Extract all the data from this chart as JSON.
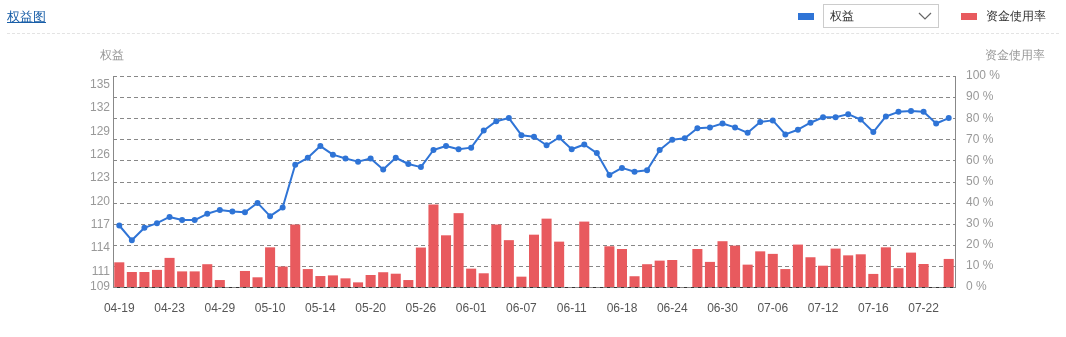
{
  "chart_data": {
    "type": "line",
    "title": "权益图",
    "ylabel": "权益",
    "y2label": "资金使用率",
    "categories": [
      "04-19",
      null,
      null,
      null,
      "04-23",
      null,
      null,
      null,
      "04-29",
      null,
      null,
      null,
      "05-10",
      null,
      null,
      null,
      "05-14",
      null,
      null,
      null,
      "05-20",
      null,
      null,
      null,
      "05-26",
      null,
      null,
      null,
      "06-01",
      null,
      null,
      null,
      "06-07",
      null,
      null,
      null,
      "06-11",
      null,
      null,
      null,
      "06-18",
      null,
      null,
      null,
      "06-24",
      null,
      null,
      null,
      "06-30",
      null,
      null,
      null,
      "07-06",
      null,
      null,
      null,
      "07-12",
      null,
      null,
      null,
      "07-16",
      null,
      null,
      null,
      "07-22",
      null,
      null
    ],
    "series": [
      {
        "name": "权益",
        "color": "#2f74d6",
        "values": [
          116.9,
          115.0,
          116.6,
          117.2,
          118.0,
          117.6,
          117.6,
          118.4,
          118.9,
          118.7,
          118.6,
          119.8,
          118.1,
          119.2,
          124.7,
          125.6,
          127.1,
          126.0,
          125.5,
          125.1,
          125.5,
          124.1,
          125.6,
          124.8,
          124.4,
          126.6,
          127.1,
          126.7,
          126.9,
          129.1,
          130.3,
          130.7,
          128.5,
          128.3,
          127.2,
          128.2,
          126.7,
          127.3,
          126.2,
          123.4,
          124.3,
          123.8,
          124.0,
          126.6,
          127.9,
          128.1,
          129.4,
          129.5,
          130.0,
          129.5,
          128.8,
          130.2,
          130.4,
          128.6,
          129.2,
          130.1,
          130.8,
          130.8,
          131.2,
          130.5,
          128.9,
          130.9,
          131.5,
          131.6,
          131.5,
          130.0,
          130.7
        ]
      },
      {
        "name": "资金使用率",
        "type": "bar",
        "axis": "y2",
        "color": "#e85a5e",
        "values": [
          11.7,
          7.1,
          7.1,
          8.1,
          13.8,
          7.4,
          7.4,
          10.8,
          3.3,
          null,
          7.6,
          4.6,
          18.8,
          9.7,
          29.6,
          8.5,
          5.2,
          5.5,
          4.1,
          2.2,
          5.7,
          7.0,
          6.3,
          3.3,
          18.7,
          39.1,
          24.5,
          35.0,
          8.7,
          6.5,
          29.6,
          22.2,
          4.9,
          24.8,
          32.4,
          21.5,
          null,
          31.0,
          null,
          19.3,
          18.0,
          5.1,
          10.8,
          12.5,
          12.8,
          null,
          18.0,
          11.9,
          21.7,
          19.6,
          10.6,
          16.9,
          15.7,
          8.5,
          20.1,
          14.1,
          10.1,
          18.2,
          15.0,
          15.5,
          6.2,
          18.8,
          8.9,
          16.3,
          10.9,
          null,
          13.3
        ]
      }
    ],
    "ylim": [
      109,
      136.1
    ],
    "yticks": [
      109,
      111,
      114,
      117,
      120,
      123,
      126,
      129,
      132,
      135
    ],
    "y2lim": [
      0,
      100
    ],
    "y2ticks": [
      {
        "value": 0,
        "label": "0 %"
      },
      {
        "value": 10,
        "label": "10 %"
      },
      {
        "value": 20,
        "label": "20 %"
      },
      {
        "value": 30,
        "label": "30 %"
      },
      {
        "value": 40,
        "label": "40 %"
      },
      {
        "value": 50,
        "label": "50 %"
      },
      {
        "value": 60,
        "label": "60 %"
      },
      {
        "value": 70,
        "label": "70 %"
      },
      {
        "value": 80,
        "label": "80 %"
      },
      {
        "value": 90,
        "label": "90 %"
      },
      {
        "value": 100,
        "label": "100 %"
      }
    ],
    "grid": true,
    "legend": "top right",
    "marker": "circle",
    "line_style": "solid"
  }
}
